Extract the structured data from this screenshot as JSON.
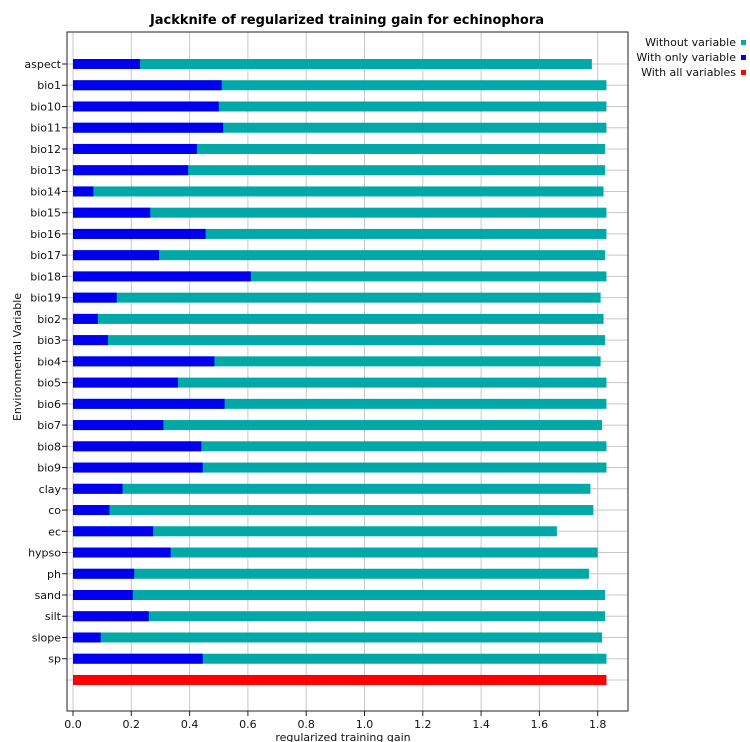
{
  "chart_data": {
    "type": "bar",
    "orientation": "horizontal",
    "title": "Jackknife of regularized training gain for echinophora",
    "xlabel": "regularized training gain",
    "ylabel": "Environmental Variable",
    "xlim": [
      0,
      1.9
    ],
    "xticks": [
      "0.0",
      "0.2",
      "0.4",
      "0.6",
      "0.8",
      "1.0",
      "1.2",
      "1.4",
      "1.6",
      "1.8"
    ],
    "grid": true,
    "legend_position": "top-right",
    "categories": [
      "aspect",
      "bio1",
      "bio10",
      "bio11",
      "bio12",
      "bio13",
      "bio14",
      "bio15",
      "bio16",
      "bio17",
      "bio18",
      "bio19",
      "bio2",
      "bio3",
      "bio4",
      "bio5",
      "bio6",
      "bio7",
      "bio8",
      "bio9",
      "clay",
      "co",
      "ec",
      "hypso",
      "ph",
      "sand",
      "silt",
      "slope",
      "sp"
    ],
    "series": [
      {
        "name": "Without variable",
        "color": "#00a8a8",
        "values": [
          1.78,
          1.83,
          1.83,
          1.83,
          1.825,
          1.825,
          1.82,
          1.83,
          1.83,
          1.825,
          1.83,
          1.81,
          1.82,
          1.825,
          1.81,
          1.83,
          1.83,
          1.815,
          1.83,
          1.83,
          1.775,
          1.785,
          1.66,
          1.8,
          1.77,
          1.825,
          1.825,
          1.815,
          1.83
        ]
      },
      {
        "name": "With only variable",
        "color": "#0000ee",
        "values": [
          0.23,
          0.51,
          0.5,
          0.515,
          0.425,
          0.395,
          0.07,
          0.265,
          0.455,
          0.295,
          0.61,
          0.15,
          0.085,
          0.12,
          0.485,
          0.36,
          0.52,
          0.31,
          0.44,
          0.445,
          0.17,
          0.125,
          0.275,
          0.335,
          0.21,
          0.205,
          0.26,
          0.095,
          0.445
        ]
      },
      {
        "name": "With all variables",
        "color": "#ff0000",
        "value": 1.83
      }
    ]
  }
}
